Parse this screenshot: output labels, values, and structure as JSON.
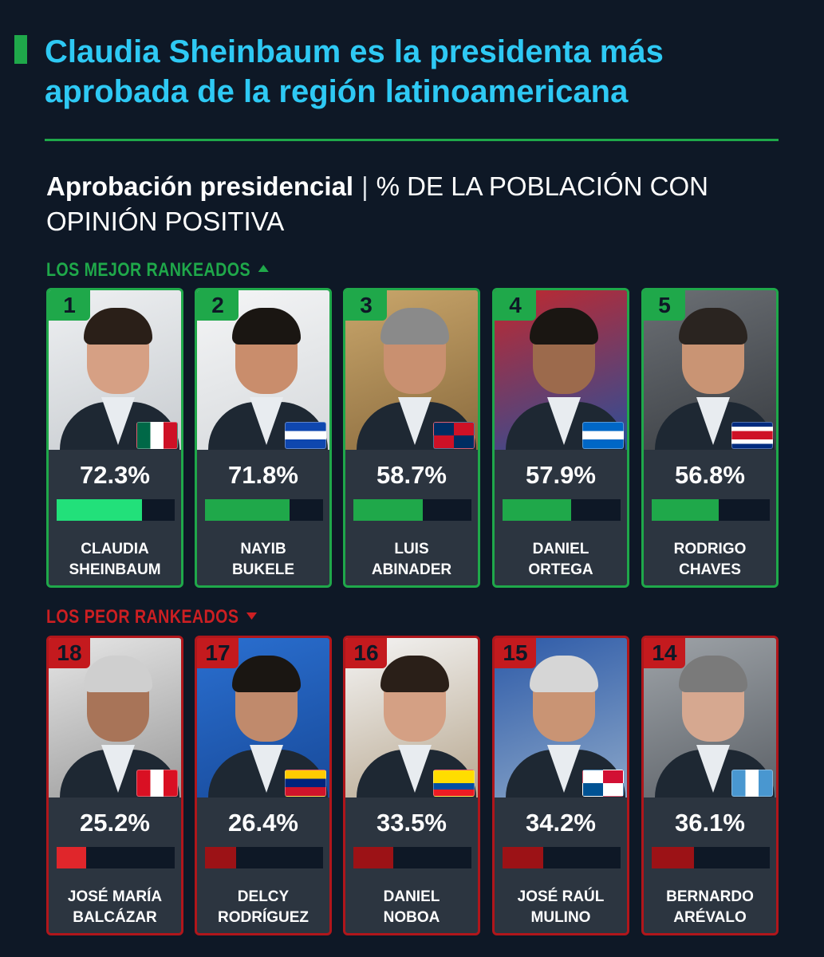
{
  "headline": "Claudia Sheinbaum es la presidenta más aprobada de la región latinoamericana",
  "subtitle_bold": "Aprobación presidencial",
  "subtitle_sep": "|",
  "subtitle_rest": "% DE LA POBLACIÓN CON OPINIÓN POSITIVA",
  "sections": {
    "best_label": "LOS MEJOR RANKEADOS",
    "worst_label": "LOS PEOR RANKEADOS"
  },
  "colors": {
    "background": "#0e1826",
    "headline": "#2ec9f4",
    "green": "#1fa84a",
    "bright_green": "#22e07a",
    "red": "#b0161b",
    "bright_red": "#e0262b",
    "card": "#2c3540"
  },
  "chart_data": {
    "type": "bar",
    "value_unit": "%",
    "ylim": [
      0,
      100
    ],
    "best": [
      {
        "rank": "1",
        "value": 72.3,
        "label": "72.3%",
        "name": "CLAUDIA SHEINBAUM",
        "flag": "mexico-flag"
      },
      {
        "rank": "2",
        "value": 71.8,
        "label": "71.8%",
        "name": "NAYIB BUKELE",
        "flag": "el-salvador-flag"
      },
      {
        "rank": "3",
        "value": 58.7,
        "label": "58.7%",
        "name": "LUIS ABINADER",
        "flag": "dominican-republic-flag"
      },
      {
        "rank": "4",
        "value": 57.9,
        "label": "57.9%",
        "name": "DANIEL ORTEGA",
        "flag": "nicaragua-flag"
      },
      {
        "rank": "5",
        "value": 56.8,
        "label": "56.8%",
        "name": "RODRIGO CHAVES",
        "flag": "costa-rica-flag"
      }
    ],
    "worst": [
      {
        "rank": "18",
        "value": 25.2,
        "label": "25.2%",
        "name": "JOSÉ MARÍA BALCÁZAR",
        "flag": "peru-flag"
      },
      {
        "rank": "17",
        "value": 26.4,
        "label": "26.4%",
        "name": "DELCY RODRÍGUEZ",
        "flag": "venezuela-flag"
      },
      {
        "rank": "16",
        "value": 33.5,
        "label": "33.5%",
        "name": "DANIEL NOBOA",
        "flag": "ecuador-flag"
      },
      {
        "rank": "15",
        "value": 34.2,
        "label": "34.2%",
        "name": "JOSÉ RAÚL MULINO",
        "flag": "panama-flag"
      },
      {
        "rank": "14",
        "value": 36.1,
        "label": "36.1%",
        "name": "BERNARDO ARÉVALO",
        "flag": "guatemala-flag"
      }
    ]
  }
}
